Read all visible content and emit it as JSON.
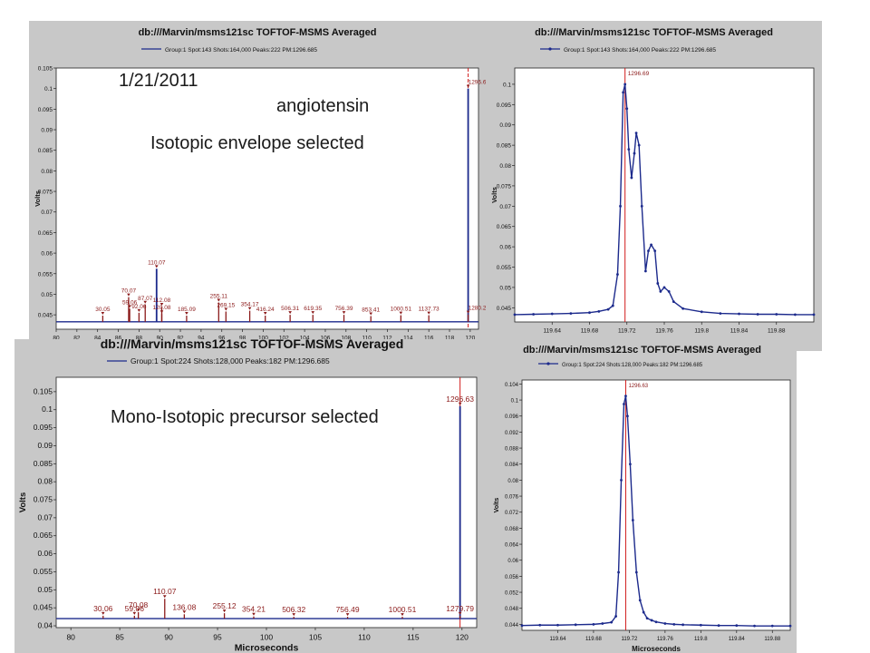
{
  "annotations": {
    "date": "1/21/2011",
    "compound": "angiotensin",
    "top_note": "Isotopic envelope selected",
    "bottom_note": "Mono-Isotopic precursor selected"
  },
  "colors": {
    "spectrum": "#1c2a8c",
    "peak": "#8b1a1a",
    "cursor": "#d11c1c",
    "frame": "#c8c8c8"
  },
  "chart_data": [
    {
      "type": "line",
      "title": "db:///Marvin/msms121sc TOFTOF-MSMS Averaged",
      "legend": "Group:1 Spot:143 Shots:164,000 Peaks:222 PM:1296.685",
      "ylabel": "Volts",
      "xlabel": "",
      "xlim": [
        80,
        120.8
      ],
      "ylim": [
        0.0415,
        0.105
      ],
      "xticks": [
        "80",
        "82",
        "84",
        "86",
        "88",
        "90",
        "92",
        "94",
        "96",
        "98",
        "100",
        "102",
        "104",
        "106",
        "108",
        "110",
        "112",
        "114",
        "116",
        "118",
        "120"
      ],
      "yticks": [
        "0.045",
        "0.05",
        "0.055",
        "0.06",
        "0.065",
        "0.07",
        "0.075",
        "0.08",
        "0.085",
        "0.09",
        "0.095",
        "0.1",
        "0.105"
      ],
      "baseline": 0.0433,
      "cursor_x": 119.8,
      "peaks": [
        {
          "x": 84.5,
          "y": 0.0448,
          "label": "30.05"
        },
        {
          "x": 87.1,
          "y": 0.0465,
          "label": "59.06"
        },
        {
          "x": 88.0,
          "y": 0.0455,
          "label": "92.06"
        },
        {
          "x": 87.0,
          "y": 0.0493,
          "label": "70.07"
        },
        {
          "x": 88.6,
          "y": 0.0475,
          "label": "87.07"
        },
        {
          "x": 89.7,
          "y": 0.0562,
          "label": "110.07"
        },
        {
          "x": 90.2,
          "y": 0.047,
          "label": "112.08"
        },
        {
          "x": 90.2,
          "y": 0.0452,
          "label": "120.08"
        },
        {
          "x": 92.6,
          "y": 0.0448,
          "label": "185.09"
        },
        {
          "x": 95.7,
          "y": 0.048,
          "label": "255.11"
        },
        {
          "x": 96.4,
          "y": 0.0458,
          "label": "269.15"
        },
        {
          "x": 98.7,
          "y": 0.046,
          "label": "354.17"
        },
        {
          "x": 100.2,
          "y": 0.0448,
          "label": "416.24"
        },
        {
          "x": 102.6,
          "y": 0.045,
          "label": "506.31"
        },
        {
          "x": 104.8,
          "y": 0.045,
          "label": "619.35"
        },
        {
          "x": 107.8,
          "y": 0.045,
          "label": "756.39"
        },
        {
          "x": 110.4,
          "y": 0.0447,
          "label": "853.41"
        },
        {
          "x": 113.3,
          "y": 0.0449,
          "label": "1000.51"
        },
        {
          "x": 116.0,
          "y": 0.0449,
          "label": "1137.73"
        },
        {
          "x": 119.8,
          "y": 0.1,
          "label": "1296.69"
        },
        {
          "x": 119.8,
          "y": 0.0451,
          "label": "1280.20"
        }
      ]
    },
    {
      "type": "line",
      "title": "db:///Marvin/msms121sc TOFTOF-MSMS Averaged",
      "legend": "Group:1 Spot:143 Shots:164,000 Peaks:222 PM:1296.685",
      "ylabel": "Volts",
      "xlabel": "",
      "xlim": [
        119.6,
        119.92
      ],
      "ylim": [
        0.0415,
        0.104
      ],
      "xticks": [
        "119.64",
        "119.68",
        "119.72",
        "119.76",
        "119.8",
        "119.84",
        "119.88"
      ],
      "yticks": [
        "0.045",
        "0.05",
        "0.055",
        "0.06",
        "0.065",
        "0.07",
        "0.075",
        "0.08",
        "0.085",
        "0.09",
        "0.095",
        "0.1"
      ],
      "cursor_x": 119.718,
      "cursor_label": "1296.69",
      "x": [
        119.6,
        119.62,
        119.64,
        119.66,
        119.68,
        119.69,
        119.7,
        119.705,
        119.71,
        119.713,
        119.716,
        119.718,
        119.72,
        119.722,
        119.725,
        119.728,
        119.73,
        119.733,
        119.736,
        119.74,
        119.743,
        119.746,
        119.75,
        119.753,
        119.756,
        119.76,
        119.765,
        119.77,
        119.78,
        119.8,
        119.82,
        119.84,
        119.86,
        119.88,
        119.9,
        119.92
      ],
      "y": [
        0.0433,
        0.0434,
        0.0435,
        0.0436,
        0.0438,
        0.0441,
        0.0446,
        0.0455,
        0.0532,
        0.07,
        0.098,
        0.1,
        0.094,
        0.084,
        0.077,
        0.083,
        0.088,
        0.085,
        0.07,
        0.054,
        0.059,
        0.0605,
        0.059,
        0.051,
        0.049,
        0.05,
        0.049,
        0.0465,
        0.0448,
        0.044,
        0.0436,
        0.0435,
        0.0434,
        0.0434,
        0.0433,
        0.0433
      ]
    },
    {
      "type": "line",
      "title": "db:///Marvin/msms121sc TOFTOF-MSMS Averaged",
      "legend": "Group:1 Spot:224 Shots:128,000 Peaks:182 PM:1296.685",
      "ylabel": "Volts",
      "xlabel": "Microseconds",
      "xlim": [
        78.5,
        121.5
      ],
      "ylim": [
        0.0395,
        0.109
      ],
      "xticks": [
        "80",
        "85",
        "90",
        "95",
        "100",
        "105",
        "110",
        "115",
        "120"
      ],
      "yticks": [
        "0.04",
        "0.045",
        "0.05",
        "0.055",
        "0.06",
        "0.065",
        "0.07",
        "0.075",
        "0.08",
        "0.085",
        "0.09",
        "0.095",
        "0.1",
        "0.105"
      ],
      "baseline": 0.042,
      "cursor_x": 119.8,
      "peaks": [
        {
          "x": 83.3,
          "y": 0.0428,
          "label": "30.06"
        },
        {
          "x": 86.9,
          "y": 0.0438,
          "label": "70.08"
        },
        {
          "x": 86.5,
          "y": 0.0428,
          "label": "59.06"
        },
        {
          "x": 89.6,
          "y": 0.0475,
          "label": "110.07"
        },
        {
          "x": 91.6,
          "y": 0.0432,
          "label": "136.08"
        },
        {
          "x": 95.7,
          "y": 0.0435,
          "label": "255.12"
        },
        {
          "x": 98.7,
          "y": 0.0426,
          "label": "354.21"
        },
        {
          "x": 102.8,
          "y": 0.0425,
          "label": "506.32"
        },
        {
          "x": 108.3,
          "y": 0.0425,
          "label": "756.49"
        },
        {
          "x": 113.9,
          "y": 0.0425,
          "label": "1000.51"
        },
        {
          "x": 119.8,
          "y": 0.101,
          "label": "1296.63"
        },
        {
          "x": 119.8,
          "y": 0.0428,
          "label": "1279.79"
        }
      ]
    },
    {
      "type": "line",
      "title": "db:///Marvin/msms121sc TOFTOF-MSMS Averaged",
      "legend": "Group:1 Spot:224 Shots:128,000 Peaks:182 PM:1296.685",
      "ylabel": "Volts",
      "xlabel": "Microseconds",
      "xlim": [
        119.6,
        119.9
      ],
      "ylim": [
        0.0425,
        0.105
      ],
      "xticks": [
        "119.64",
        "119.68",
        "119.72",
        "119.76",
        "119.8",
        "119.84",
        "119.88"
      ],
      "yticks": [
        "0.044",
        "0.048",
        "0.052",
        "0.056",
        "0.06",
        "0.064",
        "0.068",
        "0.072",
        "0.076",
        "0.08",
        "0.084",
        "0.088",
        "0.092",
        "0.096",
        "0.1",
        "0.104"
      ],
      "cursor_x": 119.716,
      "cursor_label": "1296.63",
      "x": [
        119.6,
        119.62,
        119.64,
        119.66,
        119.68,
        119.69,
        119.7,
        119.705,
        119.708,
        119.711,
        119.714,
        119.716,
        119.718,
        119.721,
        119.724,
        119.728,
        119.732,
        119.736,
        119.74,
        119.745,
        119.75,
        119.76,
        119.77,
        119.78,
        119.8,
        119.82,
        119.84,
        119.86,
        119.88,
        119.9
      ],
      "y": [
        0.0437,
        0.0438,
        0.0438,
        0.0439,
        0.044,
        0.0442,
        0.0445,
        0.046,
        0.057,
        0.08,
        0.099,
        0.101,
        0.096,
        0.084,
        0.07,
        0.057,
        0.05,
        0.047,
        0.0455,
        0.045,
        0.0446,
        0.0442,
        0.044,
        0.0439,
        0.0438,
        0.0437,
        0.0437,
        0.0436,
        0.0436,
        0.0436
      ]
    }
  ]
}
